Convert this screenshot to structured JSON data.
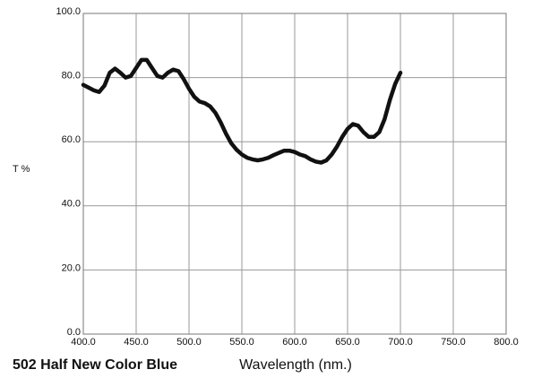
{
  "chart_data": {
    "type": "line",
    "title": "502 Half New Color Blue",
    "x_label": "Wavelength (nm.)",
    "y_label": "T %",
    "color": "#111111",
    "grid": true,
    "xlim": [
      400,
      800
    ],
    "ylim": [
      0,
      100
    ],
    "xticks": [
      {
        "value": 400,
        "label": "400.0"
      },
      {
        "value": 450,
        "label": "450.0"
      },
      {
        "value": 500,
        "label": "500.0"
      },
      {
        "value": 550,
        "label": "550.0"
      },
      {
        "value": 600,
        "label": "600.0"
      },
      {
        "value": 650,
        "label": "650.0"
      },
      {
        "value": 700,
        "label": "700.0"
      },
      {
        "value": 750,
        "label": "750.0"
      },
      {
        "value": 800,
        "label": "800.0"
      }
    ],
    "yticks": [
      {
        "value": 0,
        "label": "0.0"
      },
      {
        "value": 20,
        "label": "20.0"
      },
      {
        "value": 40,
        "label": "40.0"
      },
      {
        "value": 60,
        "label": "60.0"
      },
      {
        "value": 80,
        "label": "80.0"
      },
      {
        "value": 100,
        "label": "100.0"
      }
    ],
    "x": [
      400,
      410,
      415,
      420,
      425,
      430,
      435,
      440,
      445,
      450,
      455,
      460,
      465,
      470,
      475,
      480,
      485,
      490,
      495,
      500,
      505,
      510,
      515,
      520,
      525,
      530,
      535,
      540,
      545,
      550,
      555,
      560,
      565,
      570,
      575,
      580,
      585,
      590,
      595,
      600,
      605,
      610,
      615,
      620,
      625,
      630,
      635,
      640,
      645,
      650,
      655,
      660,
      665,
      670,
      675,
      680,
      685,
      690,
      695,
      700
    ],
    "values": [
      77.7,
      76,
      75.5,
      77.5,
      81.5,
      82.8,
      81.5,
      80,
      80.5,
      83,
      85.5,
      85.5,
      83,
      80.5,
      80,
      81.5,
      82.5,
      82,
      79.5,
      76.5,
      74,
      72.5,
      72,
      71,
      69,
      66,
      62.5,
      59.5,
      57.5,
      56,
      55,
      54.5,
      54.2,
      54.5,
      55,
      55.8,
      56.5,
      57.2,
      57.2,
      56.8,
      56,
      55.5,
      54.5,
      53.8,
      53.5,
      54.2,
      56,
      58.5,
      61.5,
      64,
      65.5,
      65,
      63,
      61.5,
      61.5,
      63,
      67,
      73,
      78,
      81.5
    ]
  }
}
